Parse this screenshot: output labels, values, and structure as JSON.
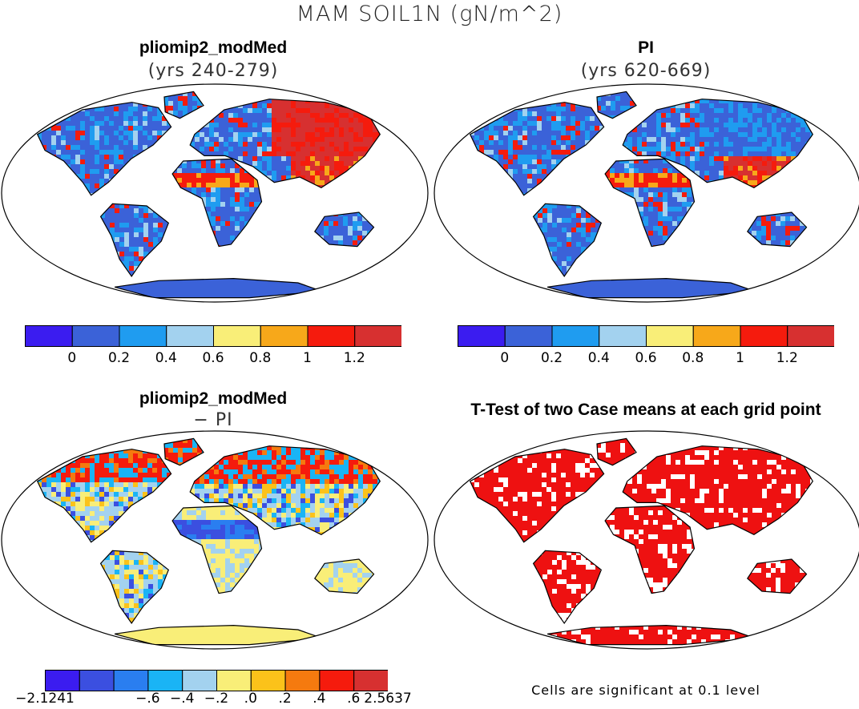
{
  "title": "MAM SOIL1N (gN/m^2)",
  "panels": {
    "top_left": {
      "title": "pliomip2_modMed",
      "subtitle": "(yrs 240-279)"
    },
    "top_right": {
      "title": "PI",
      "subtitle": "(yrs 620-669)"
    },
    "bottom_left": {
      "title": "pliomip2_modMed",
      "subtitle": "− PI"
    },
    "bottom_right": {
      "title": "T-Test of two Case means at each grid point"
    }
  },
  "colorbar_absolute": {
    "colors": [
      "#3b1cf0",
      "#3b62d8",
      "#1f9cf0",
      "#a3d2ef",
      "#f9ee78",
      "#f7a81a",
      "#f51b0d",
      "#d73030"
    ],
    "tick_labels": [
      "0",
      "0.2",
      "0.4",
      "0.6",
      "0.8",
      "1",
      "1.2"
    ]
  },
  "colorbar_difference": {
    "colors": [
      "#3b1cf0",
      "#3b4fe0",
      "#2a7ef0",
      "#1ab4f5",
      "#a3d2ef",
      "#f9ee78",
      "#fbc21a",
      "#f57a0f",
      "#f51b0d",
      "#d73030"
    ],
    "tick_labels": [
      "−2.1241",
      "−.6",
      "−.4",
      "−.2",
      ".0",
      ".2",
      ".4",
      ".6",
      "2.5637"
    ]
  },
  "significance_color": "#ee1111",
  "footnote": "Cells are significant at 0.1 level"
}
